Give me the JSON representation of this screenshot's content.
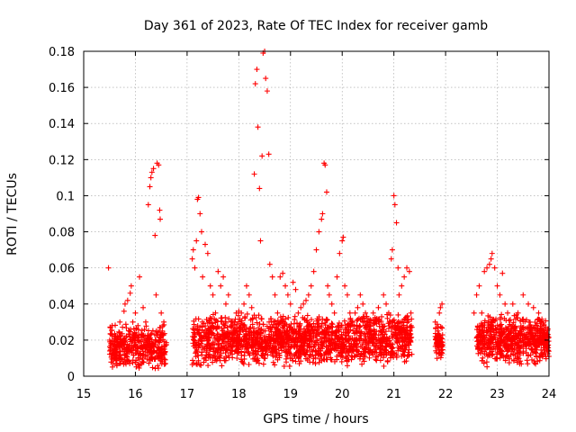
{
  "chart_data": {
    "type": "scatter",
    "title": "Day 361 of 2023, Rate Of TEC Index for receiver gamb",
    "xlabel": "GPS time / hours",
    "ylabel": "ROTI / TECUs",
    "xlim": [
      15,
      24
    ],
    "ylim": [
      0,
      0.18
    ],
    "x_ticks": [
      15,
      16,
      17,
      18,
      19,
      20,
      21,
      22,
      23,
      24
    ],
    "x_tick_labels": [
      "15",
      "16",
      "17",
      "18",
      "19",
      "20",
      "21",
      "22",
      "23",
      "24"
    ],
    "y_ticks": [
      0,
      0.02,
      0.04,
      0.06,
      0.08,
      0.1,
      0.12,
      0.14,
      0.16,
      0.18
    ],
    "y_tick_labels": [
      "0",
      "0.02",
      "0.04",
      "0.06",
      "0.08",
      "0.1",
      "0.12",
      "0.14",
      "0.16",
      "0.18"
    ],
    "grid": true,
    "marker": "+",
    "series_color": "#ff0000",
    "series": [
      {
        "name": "ROTI",
        "points": [
          [
            15.48,
            0.06
          ],
          [
            15.55,
            0.028
          ],
          [
            15.6,
            0.015
          ],
          [
            15.65,
            0.022
          ],
          [
            15.7,
            0.03
          ],
          [
            15.75,
            0.018
          ],
          [
            15.78,
            0.036
          ],
          [
            15.8,
            0.04
          ],
          [
            15.85,
            0.042
          ],
          [
            15.88,
            0.025
          ],
          [
            15.9,
            0.046
          ],
          [
            15.92,
            0.05
          ],
          [
            15.95,
            0.03
          ],
          [
            15.98,
            0.02
          ],
          [
            16.0,
            0.035
          ],
          [
            16.05,
            0.028
          ],
          [
            16.08,
            0.055
          ],
          [
            16.1,
            0.012
          ],
          [
            16.15,
            0.038
          ],
          [
            16.18,
            0.02
          ],
          [
            16.2,
            0.03
          ],
          [
            16.25,
            0.095
          ],
          [
            16.28,
            0.105
          ],
          [
            16.3,
            0.11
          ],
          [
            16.32,
            0.113
          ],
          [
            16.35,
            0.115
          ],
          [
            16.38,
            0.078
          ],
          [
            16.4,
            0.045
          ],
          [
            16.42,
            0.118
          ],
          [
            16.45,
            0.117
          ],
          [
            16.47,
            0.092
          ],
          [
            16.48,
            0.087
          ],
          [
            16.5,
            0.035
          ],
          [
            16.52,
            0.025
          ],
          [
            16.55,
            0.03
          ],
          [
            17.1,
            0.065
          ],
          [
            17.12,
            0.07
          ],
          [
            17.15,
            0.06
          ],
          [
            17.18,
            0.075
          ],
          [
            17.2,
            0.098
          ],
          [
            17.22,
            0.099
          ],
          [
            17.25,
            0.09
          ],
          [
            17.28,
            0.08
          ],
          [
            17.3,
            0.055
          ],
          [
            17.35,
            0.073
          ],
          [
            17.4,
            0.068
          ],
          [
            17.45,
            0.05
          ],
          [
            17.5,
            0.045
          ],
          [
            17.55,
            0.035
          ],
          [
            17.6,
            0.058
          ],
          [
            17.65,
            0.05
          ],
          [
            17.7,
            0.055
          ],
          [
            17.75,
            0.04
          ],
          [
            17.8,
            0.045
          ],
          [
            17.85,
            0.03
          ],
          [
            17.9,
            0.025
          ],
          [
            17.95,
            0.035
          ],
          [
            18.0,
            0.036
          ],
          [
            18.05,
            0.035
          ],
          [
            18.1,
            0.04
          ],
          [
            18.15,
            0.05
          ],
          [
            18.2,
            0.045
          ],
          [
            18.25,
            0.038
          ],
          [
            18.3,
            0.112
          ],
          [
            18.32,
            0.162
          ],
          [
            18.35,
            0.17
          ],
          [
            18.37,
            0.138
          ],
          [
            18.4,
            0.104
          ],
          [
            18.42,
            0.075
          ],
          [
            18.45,
            0.122
          ],
          [
            18.47,
            0.179
          ],
          [
            18.5,
            0.18
          ],
          [
            18.52,
            0.165
          ],
          [
            18.55,
            0.158
          ],
          [
            18.58,
            0.123
          ],
          [
            18.6,
            0.062
          ],
          [
            18.65,
            0.055
          ],
          [
            18.7,
            0.045
          ],
          [
            18.75,
            0.035
          ],
          [
            18.8,
            0.055
          ],
          [
            18.85,
            0.057
          ],
          [
            18.9,
            0.05
          ],
          [
            18.95,
            0.045
          ],
          [
            19.0,
            0.04
          ],
          [
            19.05,
            0.052
          ],
          [
            19.1,
            0.048
          ],
          [
            19.15,
            0.035
          ],
          [
            19.2,
            0.038
          ],
          [
            19.25,
            0.04
          ],
          [
            19.3,
            0.042
          ],
          [
            19.35,
            0.045
          ],
          [
            19.4,
            0.05
          ],
          [
            19.45,
            0.058
          ],
          [
            19.5,
            0.07
          ],
          [
            19.55,
            0.08
          ],
          [
            19.6,
            0.087
          ],
          [
            19.62,
            0.09
          ],
          [
            19.65,
            0.118
          ],
          [
            19.67,
            0.117
          ],
          [
            19.7,
            0.102
          ],
          [
            19.72,
            0.05
          ],
          [
            19.75,
            0.045
          ],
          [
            19.8,
            0.04
          ],
          [
            19.85,
            0.035
          ],
          [
            19.9,
            0.055
          ],
          [
            19.95,
            0.068
          ],
          [
            20.0,
            0.075
          ],
          [
            20.02,
            0.077
          ],
          [
            20.05,
            0.05
          ],
          [
            20.1,
            0.045
          ],
          [
            20.15,
            0.035
          ],
          [
            20.2,
            0.03
          ],
          [
            20.25,
            0.035
          ],
          [
            20.3,
            0.038
          ],
          [
            20.35,
            0.045
          ],
          [
            20.4,
            0.04
          ],
          [
            20.45,
            0.035
          ],
          [
            20.5,
            0.03
          ],
          [
            20.55,
            0.028
          ],
          [
            20.6,
            0.035
          ],
          [
            20.65,
            0.03
          ],
          [
            20.7,
            0.038
          ],
          [
            20.75,
            0.025
          ],
          [
            20.8,
            0.045
          ],
          [
            20.85,
            0.04
          ],
          [
            20.9,
            0.035
          ],
          [
            20.95,
            0.065
          ],
          [
            20.97,
            0.07
          ],
          [
            21.0,
            0.1
          ],
          [
            21.02,
            0.095
          ],
          [
            21.05,
            0.085
          ],
          [
            21.08,
            0.06
          ],
          [
            21.1,
            0.045
          ],
          [
            21.15,
            0.05
          ],
          [
            21.2,
            0.055
          ],
          [
            21.25,
            0.06
          ],
          [
            21.3,
            0.058
          ],
          [
            21.33,
            0.035
          ],
          [
            21.8,
            0.03
          ],
          [
            21.85,
            0.025
          ],
          [
            21.88,
            0.035
          ],
          [
            21.9,
            0.038
          ],
          [
            21.93,
            0.04
          ],
          [
            22.55,
            0.035
          ],
          [
            22.6,
            0.045
          ],
          [
            22.65,
            0.05
          ],
          [
            22.7,
            0.035
          ],
          [
            22.75,
            0.058
          ],
          [
            22.8,
            0.06
          ],
          [
            22.85,
            0.062
          ],
          [
            22.88,
            0.065
          ],
          [
            22.9,
            0.068
          ],
          [
            22.95,
            0.06
          ],
          [
            23.0,
            0.05
          ],
          [
            23.05,
            0.045
          ],
          [
            23.1,
            0.057
          ],
          [
            23.15,
            0.04
          ],
          [
            23.2,
            0.035
          ],
          [
            23.3,
            0.04
          ],
          [
            23.4,
            0.035
          ],
          [
            23.5,
            0.045
          ],
          [
            23.6,
            0.04
          ],
          [
            23.7,
            0.038
          ],
          [
            23.8,
            0.035
          ],
          [
            23.85,
            0.03
          ],
          [
            23.9,
            0.025
          ],
          [
            23.95,
            0.02
          ]
        ],
        "dense_bands": [
          {
            "x_range": [
              15.5,
              16.6
            ],
            "y_range": [
              0.003,
              0.03
            ],
            "count": 420
          },
          {
            "x_range": [
              17.1,
              21.35
            ],
            "y_range": [
              0.005,
              0.035
            ],
            "count": 1700
          },
          {
            "x_range": [
              21.8,
              21.95
            ],
            "y_range": [
              0.008,
              0.03
            ],
            "count": 70
          },
          {
            "x_range": [
              22.6,
              24.0
            ],
            "y_range": [
              0.005,
              0.035
            ],
            "count": 640
          }
        ]
      }
    ]
  }
}
